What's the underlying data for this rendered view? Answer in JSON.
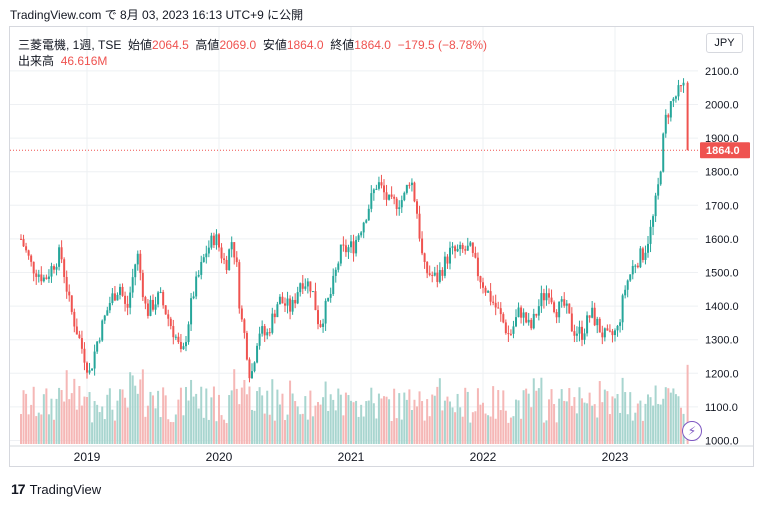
{
  "header": {
    "caption": "TradingView.com で 8月 03, 2023 16:13 UTC+9 に公開"
  },
  "legend": {
    "symbol": "三菱電機, 1週, TSE",
    "open_label": "始値",
    "open_value": "2064.5",
    "high_label": "高値",
    "high_value": "2069.0",
    "low_label": "安値",
    "low_value": "1864.0",
    "close_label": "終値",
    "close_value": "1864.0",
    "change": "−179.5 (−8.78%)",
    "volume_label": "出来高",
    "volume_value": "46.616M"
  },
  "currency_button": "JPY",
  "price_tag": "1864.0",
  "footer": {
    "brand": "TradingView",
    "logo_text": "17"
  },
  "colors": {
    "up": "#26a69a",
    "down": "#ef5350",
    "volume_up": "#a8d5cf",
    "volume_down": "#f5b7b6",
    "grid": "#eef0f3"
  },
  "chart_data": {
    "type": "candlestick",
    "interval": "1 week",
    "x_ticks": [
      "2019",
      "2020",
      "2021",
      "2022",
      "2023"
    ],
    "y_ticks": [
      "1000.0",
      "1100.0",
      "1200.0",
      "1300.0",
      "1400.0",
      "1500.0",
      "1600.0",
      "1700.0",
      "1800.0",
      "1900.0",
      "2000.0",
      "2100.0"
    ],
    "ylim": [
      1000,
      2110
    ],
    "last_price": 1864.0,
    "anchors": [
      [
        2018.5,
        1600
      ],
      [
        2018.58,
        1520
      ],
      [
        2018.68,
        1480
      ],
      [
        2018.8,
        1560
      ],
      [
        2018.87,
        1400
      ],
      [
        2018.95,
        1290
      ],
      [
        2019.02,
        1200
      ],
      [
        2019.08,
        1300
      ],
      [
        2019.18,
        1420
      ],
      [
        2019.25,
        1460
      ],
      [
        2019.3,
        1380
      ],
      [
        2019.38,
        1560
      ],
      [
        2019.45,
        1380
      ],
      [
        2019.55,
        1430
      ],
      [
        2019.62,
        1360
      ],
      [
        2019.68,
        1300
      ],
      [
        2019.72,
        1240
      ],
      [
        2019.8,
        1430
      ],
      [
        2019.9,
        1560
      ],
      [
        2019.97,
        1610
      ],
      [
        2020.05,
        1520
      ],
      [
        2020.1,
        1600
      ],
      [
        2020.14,
        1500
      ],
      [
        2020.16,
        1380
      ],
      [
        2020.2,
        1300
      ],
      [
        2020.24,
        1180
      ],
      [
        2020.3,
        1330
      ],
      [
        2020.36,
        1310
      ],
      [
        2020.45,
        1420
      ],
      [
        2020.55,
        1390
      ],
      [
        2020.62,
        1480
      ],
      [
        2020.7,
        1460
      ],
      [
        2020.76,
        1340
      ],
      [
        2020.85,
        1440
      ],
      [
        2020.92,
        1560
      ],
      [
        2021.02,
        1580
      ],
      [
        2021.1,
        1660
      ],
      [
        2021.2,
        1770
      ],
      [
        2021.3,
        1700
      ],
      [
        2021.4,
        1720
      ],
      [
        2021.45,
        1790
      ],
      [
        2021.5,
        1680
      ],
      [
        2021.55,
        1510
      ],
      [
        2021.65,
        1480
      ],
      [
        2021.75,
        1560
      ],
      [
        2021.82,
        1560
      ],
      [
        2021.9,
        1570
      ],
      [
        2021.97,
        1490
      ],
      [
        2022.05,
        1430
      ],
      [
        2022.12,
        1380
      ],
      [
        2022.2,
        1310
      ],
      [
        2022.28,
        1390
      ],
      [
        2022.36,
        1330
      ],
      [
        2022.44,
        1420
      ],
      [
        2022.5,
        1450
      ],
      [
        2022.55,
        1390
      ],
      [
        2022.62,
        1400
      ],
      [
        2022.68,
        1330
      ],
      [
        2022.75,
        1320
      ],
      [
        2022.82,
        1380
      ],
      [
        2022.9,
        1320
      ],
      [
        2022.95,
        1300
      ],
      [
        2023.02,
        1330
      ],
      [
        2023.08,
        1460
      ],
      [
        2023.15,
        1530
      ],
      [
        2023.22,
        1560
      ],
      [
        2023.28,
        1640
      ],
      [
        2023.33,
        1760
      ],
      [
        2023.38,
        1950
      ],
      [
        2023.42,
        2000
      ],
      [
        2023.47,
        2030
      ],
      [
        2023.52,
        2050
      ],
      [
        2023.55,
        1864
      ]
    ],
    "volume_ylim": [
      0,
      120
    ]
  }
}
